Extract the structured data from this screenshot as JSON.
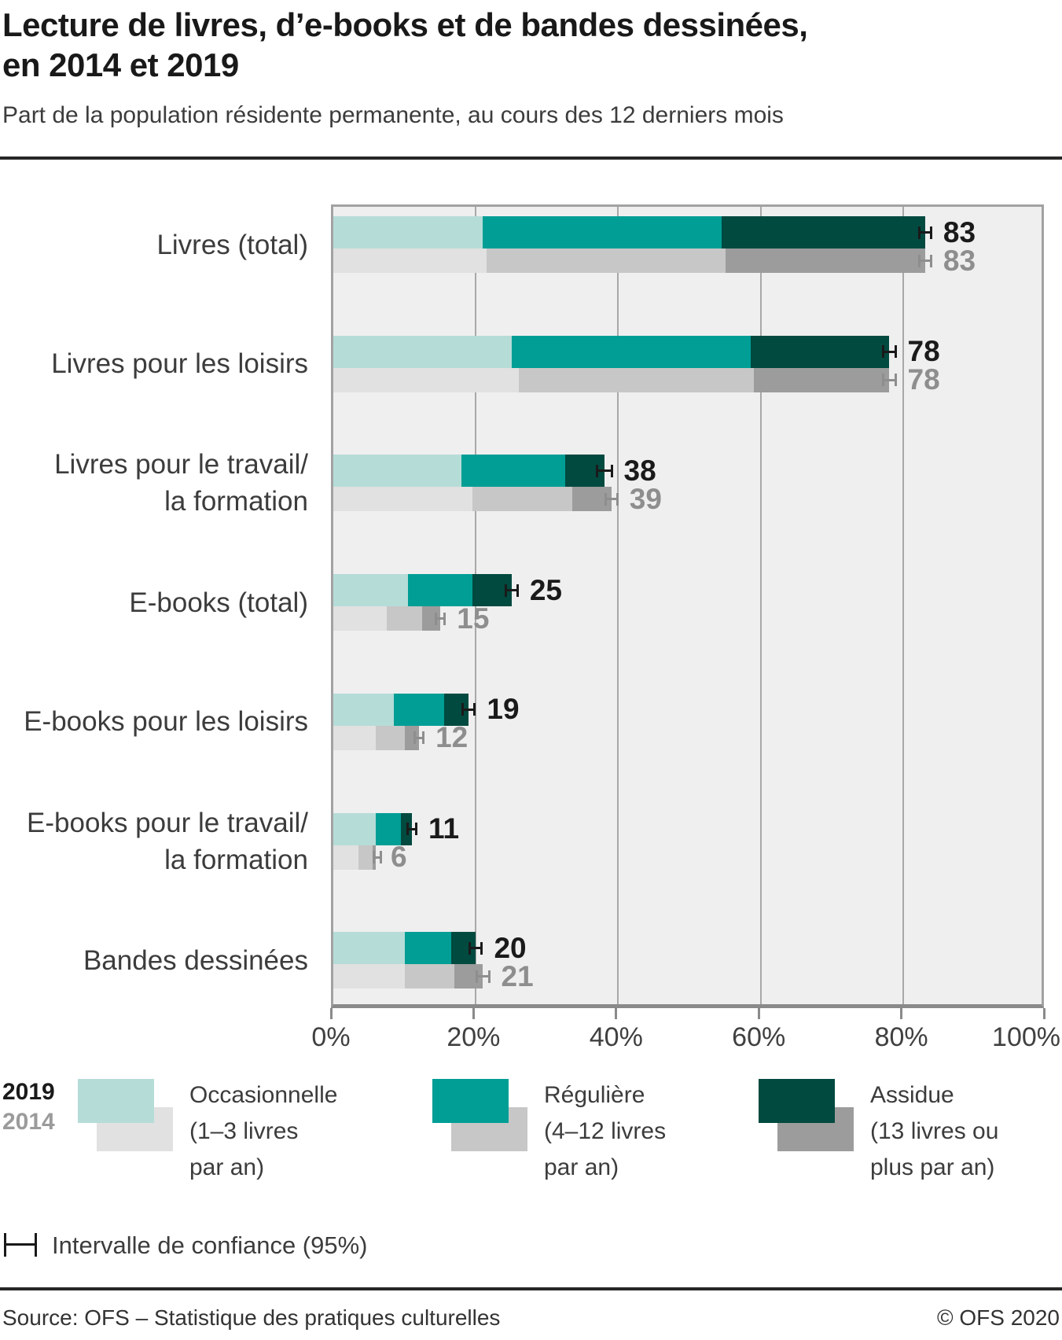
{
  "header": {
    "title_line1": "Lecture de livres, d’e-books et de bandes dessinées,",
    "title_line2": "en 2014 et 2019",
    "subtitle": "Part de la population résidente permanente, au cours des 12 derniers mois"
  },
  "chart_data": {
    "type": "bar",
    "orientation": "horizontal",
    "stacked": true,
    "unit": "percent",
    "xlim": [
      0,
      100
    ],
    "grid": true,
    "x_tick_values": [
      0,
      20,
      40,
      60,
      80,
      100
    ],
    "x_tick_labels": [
      "0%",
      "20%",
      "40%",
      "60%",
      "80%",
      "100%"
    ],
    "years": [
      "2019",
      "2014"
    ],
    "levels": [
      "Occasionnelle (1–3 livres par an)",
      "Régulière (4–12 livres par an)",
      "Assidue (13 livres ou plus par an)"
    ],
    "rows": [
      {
        "label_lines": [
          "Livres (total)"
        ],
        "y2019": {
          "segments": [
            21,
            33.5,
            28.5
          ],
          "total": 83,
          "ci": 1
        },
        "y2014": {
          "segments": [
            21.5,
            33.5,
            28
          ],
          "total": 83,
          "ci": 1
        }
      },
      {
        "label_lines": [
          "Livres pour les loisirs"
        ],
        "y2019": {
          "segments": [
            25,
            33.5,
            19.5
          ],
          "total": 78,
          "ci": 1
        },
        "y2014": {
          "segments": [
            26,
            33,
            19
          ],
          "total": 78,
          "ci": 1
        }
      },
      {
        "label_lines": [
          "Livres pour le travail/",
          "la formation"
        ],
        "y2019": {
          "segments": [
            18,
            14.5,
            5.5
          ],
          "total": 38,
          "ci": 1.2
        },
        "y2014": {
          "segments": [
            19.5,
            14,
            5.5
          ],
          "total": 39,
          "ci": 1
        }
      },
      {
        "label_lines": [
          "E-books (total)"
        ],
        "y2019": {
          "segments": [
            10.5,
            9,
            5.5
          ],
          "total": 25,
          "ci": 1
        },
        "y2014": {
          "segments": [
            7.5,
            5,
            2.5
          ],
          "total": 15,
          "ci": 0.8
        }
      },
      {
        "label_lines": [
          "E-books pour les loisirs"
        ],
        "y2019": {
          "segments": [
            8.5,
            7,
            3.5
          ],
          "total": 19,
          "ci": 1
        },
        "y2014": {
          "segments": [
            6,
            4,
            2
          ],
          "total": 12,
          "ci": 0.8
        }
      },
      {
        "label_lines": [
          "E-books pour le travail/",
          "la formation"
        ],
        "y2019": {
          "segments": [
            6,
            3.5,
            1.5
          ],
          "total": 11,
          "ci": 0.8
        },
        "y2014": {
          "segments": [
            3.5,
            2,
            0.5
          ],
          "total": 6,
          "ci": 0.5
        }
      },
      {
        "label_lines": [
          "Bandes dessinées"
        ],
        "y2019": {
          "segments": [
            10,
            6.5,
            3.5
          ],
          "total": 20,
          "ci": 1
        },
        "y2014": {
          "segments": [
            10,
            7,
            4
          ],
          "total": 21,
          "ci": 1
        }
      }
    ]
  },
  "legend": {
    "year_2019": "2019",
    "year_2014": "2014",
    "items": [
      {
        "lines": [
          "Occasionnelle",
          "(1–3 livres",
          "par an)"
        ]
      },
      {
        "lines": [
          "Régulière",
          "(4–12 livres",
          "par an)"
        ]
      },
      {
        "lines": [
          "Assidue",
          "(13 livres ou",
          "plus par an)"
        ]
      }
    ]
  },
  "ci_note": "Intervalle de confiance (95%)",
  "footer": {
    "source": "Source: OFS – Statistique des pratiques culturelles",
    "copyright": "© OFS 2020"
  },
  "colors": {
    "bars_2019": [
      "#b6dcd8",
      "#009e95",
      "#004a40"
    ],
    "bars_2014": [
      "#e0e1e0",
      "#c6c7c6",
      "#9c9c9c"
    ],
    "plot_bg": "#efefef",
    "grid": "#a8a8a8",
    "axis": "#8a8a8a",
    "value_2019": "#1a1a1a",
    "value_2014": "#8e8e8e",
    "text": "#3c3c3c"
  }
}
